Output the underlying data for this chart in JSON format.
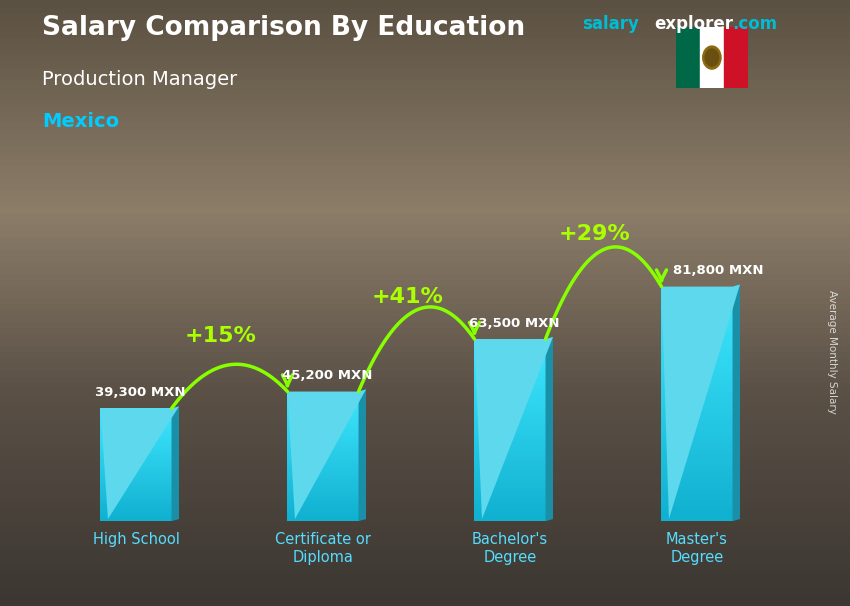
{
  "title1": "Salary Comparison By Education",
  "title2": "Production Manager",
  "title3": "Mexico",
  "watermark_salary": "salary",
  "watermark_explorer": "explorer",
  "watermark_com": ".com",
  "right_label": "Average Monthly Salary",
  "categories": [
    "High School",
    "Certificate or\nDiploma",
    "Bachelor's\nDegree",
    "Master's\nDegree"
  ],
  "values": [
    39300,
    45200,
    63500,
    81800
  ],
  "labels": [
    "39,300 MXN",
    "45,200 MXN",
    "63,500 MXN",
    "81,800 MXN"
  ],
  "pct_labels": [
    "+15%",
    "+41%",
    "+29%"
  ],
  "bar_face_color": "#29c6e0",
  "bar_side_color": "#1a8fa8",
  "bar_top_color": "#5dd8ed",
  "bg_color": "#3a3020",
  "title_color": "#ffffff",
  "subtitle_color": "#ffffff",
  "country_color": "#00ccff",
  "label_color": "#ffffff",
  "pct_color": "#aaff00",
  "watermark_color1": "#00bcd4",
  "watermark_color2": "#ffffff",
  "arrow_color": "#88ff00",
  "flag_green": "#006847",
  "flag_white": "#ffffff",
  "flag_red": "#ce1126",
  "figsize": [
    8.5,
    6.06
  ],
  "dpi": 100
}
